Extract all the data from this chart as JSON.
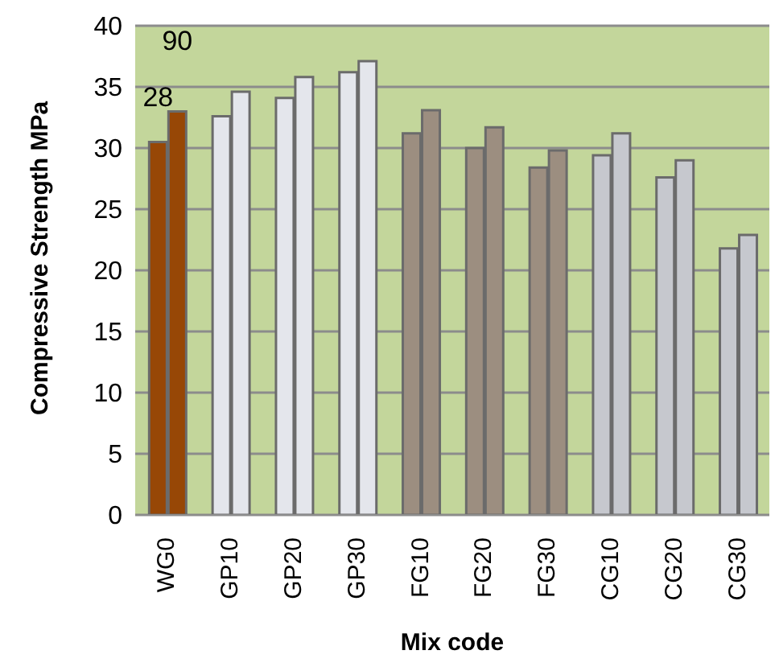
{
  "chart_data": {
    "type": "bar",
    "ylabel": "Compressive Strength MPa",
    "xlabel": "Mix code",
    "categories": [
      "WG0",
      "GP10",
      "GP20",
      "GP30",
      "FG10",
      "FG20",
      "FG30",
      "CG10",
      "CG20",
      "CG30"
    ],
    "series": [
      {
        "colors": [
          "#974706",
          "#e4e6ec",
          "#e4e6ec",
          "#e4e6ec",
          "#9c8e80",
          "#9c8e80",
          "#9c8e80",
          "#c6c8ce",
          "#c6c8ce",
          "#c6c8ce"
        ],
        "values": [
          30.5,
          32.6,
          34.1,
          36.2,
          31.2,
          30.0,
          28.4,
          29.4,
          27.6,
          21.8
        ]
      },
      {
        "colors": [
          "#974706",
          "#e4e6ec",
          "#e4e6ec",
          "#e4e6ec",
          "#9c8e80",
          "#9c8e80",
          "#9c8e80",
          "#c6c8ce",
          "#c6c8ce",
          "#c6c8ce"
        ],
        "values": [
          33.0,
          34.6,
          35.8,
          37.1,
          33.1,
          31.7,
          29.8,
          31.2,
          29.0,
          22.9
        ]
      }
    ],
    "annotations": [
      "28",
      "90"
    ],
    "ylim": [
      0,
      40
    ],
    "yticks": [
      0,
      5,
      10,
      15,
      20,
      25,
      30,
      35,
      40
    ],
    "grid": "y",
    "legend": false
  }
}
